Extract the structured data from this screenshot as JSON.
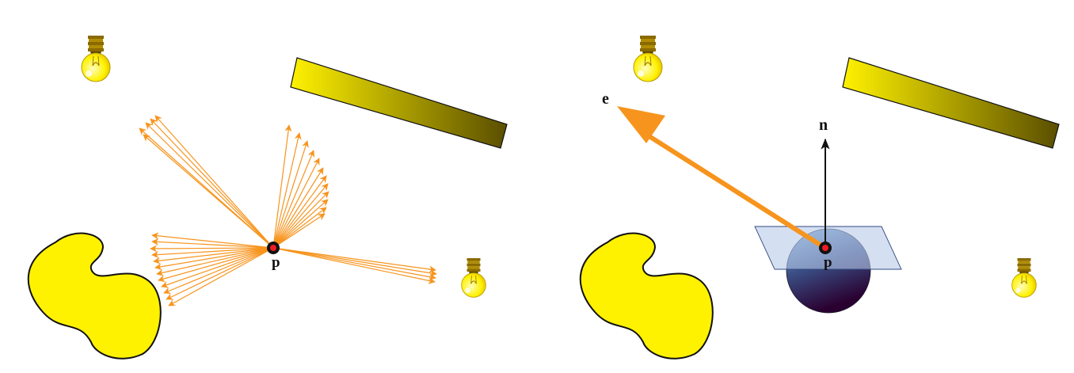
{
  "colors": {
    "ray": "#f7941d",
    "blob_fill": "#fff200",
    "blob_stroke": "#111111",
    "plate_start": "#fff200",
    "plate_end": "#5a4e00",
    "point_core": "#ed1c24",
    "point_ring": "#111111",
    "normal": "#111111",
    "tangent_plane": "#b7c9ea",
    "hemisphere_top": "#7eb0dc",
    "hemisphere_bottom": "#2a0030",
    "bulb_glass": "#fff200",
    "bulb_base": "#8a6a00"
  },
  "icons": [
    "light-bulb-icon"
  ],
  "left_panel": {
    "point_label": "p"
  },
  "right_panel": {
    "point_label": "p",
    "normal_label": "n",
    "eye_label": "e"
  }
}
